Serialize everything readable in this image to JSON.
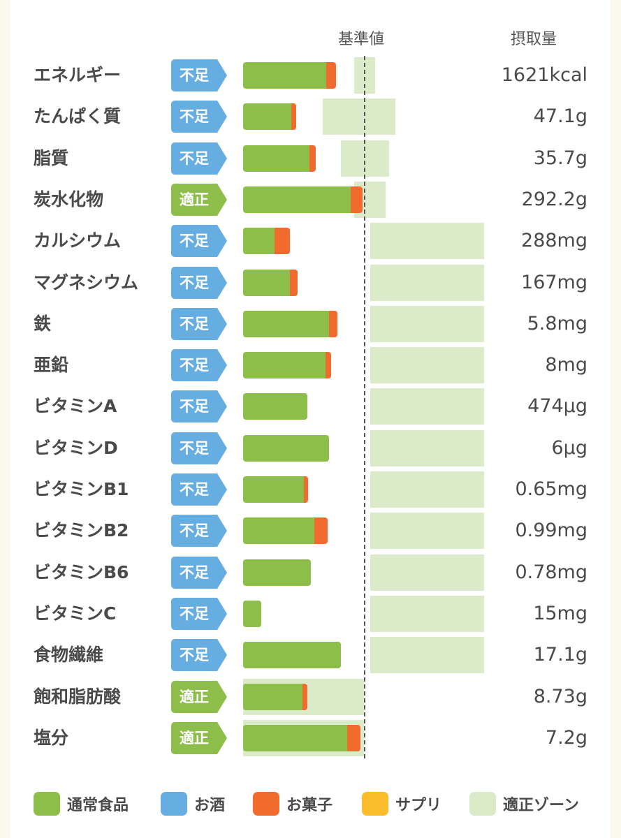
{
  "header": {
    "reference_label": "基準値",
    "intake_label": "摂取量"
  },
  "colors": {
    "normal_food": "#8dbe4a",
    "alcohol": "#66ade1",
    "snacks": "#f26b2e",
    "supplement": "#fcbd2c",
    "zone": "#dbeac8",
    "badge_lack": "#66ade1",
    "badge_ok": "#8dbe4a"
  },
  "legend": [
    {
      "key": "normal_food",
      "label": "通常食品"
    },
    {
      "key": "alcohol",
      "label": "お酒"
    },
    {
      "key": "snacks",
      "label": "お菓子"
    },
    {
      "key": "supplement",
      "label": "サプリ"
    },
    {
      "key": "zone",
      "label": "適正ゾーン"
    }
  ],
  "chart_data": {
    "type": "bar",
    "orientation": "horizontal",
    "stacked": true,
    "reference_line_pct": 100,
    "xlim": [
      0,
      200
    ],
    "categories": [
      "エネルギー",
      "たんぱく質",
      "脂質",
      "炭水化物",
      "カルシウム",
      "マグネシウム",
      "鉄",
      "亜鉛",
      "ビタミンA",
      "ビタミンD",
      "ビタミンB1",
      "ビタミンB2",
      "ビタミンB6",
      "ビタミンC",
      "食物繊維",
      "飽和脂肪酸",
      "塩分"
    ],
    "status": [
      "不足",
      "不足",
      "不足",
      "適正",
      "不足",
      "不足",
      "不足",
      "不足",
      "不足",
      "不足",
      "不足",
      "不足",
      "不足",
      "不足",
      "不足",
      "適正",
      "適正"
    ],
    "intake": [
      "1621kcal",
      "47.1g",
      "35.7g",
      "292.2g",
      "288mg",
      "167mg",
      "5.8mg",
      "8mg",
      "474μg",
      "6μg",
      "0.65mg",
      "0.99mg",
      "0.78mg",
      "15mg",
      "17.1g",
      "8.73g",
      "7.2g"
    ],
    "series": [
      {
        "name": "通常食品",
        "values": [
          69,
          40,
          55,
          89,
          26,
          39,
          71,
          68,
          53,
          71,
          50,
          59,
          56,
          15,
          81,
          49,
          86
        ]
      },
      {
        "name": "お菓子",
        "values": [
          8,
          4,
          5,
          10,
          13,
          6,
          7,
          5,
          0,
          0,
          4,
          11,
          0,
          0,
          0,
          4,
          11
        ]
      },
      {
        "name": "お酒",
        "values": [
          0,
          0,
          0,
          0,
          0,
          0,
          0,
          0,
          0,
          0,
          0,
          0,
          0,
          0,
          0,
          0,
          0
        ]
      },
      {
        "name": "サプリ",
        "values": [
          0,
          0,
          0,
          0,
          0,
          0,
          0,
          0,
          0,
          0,
          0,
          0,
          0,
          0,
          0,
          0,
          0
        ]
      }
    ],
    "appropriate_zone_pct": [
      [
        92,
        109
      ],
      [
        66,
        126
      ],
      [
        81,
        121
      ],
      [
        92,
        118
      ],
      [
        105,
        200
      ],
      [
        105,
        200
      ],
      [
        105,
        200
      ],
      [
        105,
        200
      ],
      [
        105,
        200
      ],
      [
        105,
        200
      ],
      [
        105,
        200
      ],
      [
        105,
        200
      ],
      [
        105,
        200
      ],
      [
        105,
        200
      ],
      [
        105,
        200
      ],
      [
        0,
        100
      ],
      [
        0,
        100
      ]
    ]
  }
}
